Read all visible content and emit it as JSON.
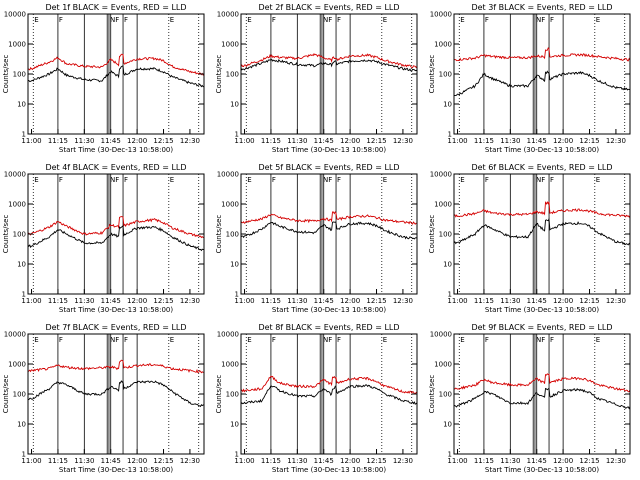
{
  "colors": {
    "events": "#000000",
    "lld": "#d40000",
    "axes": "#000000",
    "background": "#ffffff"
  },
  "chart_data": {
    "type": "line",
    "layout": "3x3 grid",
    "xlabel": "Start Time (30-Dec-13 10:58:00)",
    "ylabel": "Counts/sec",
    "ylog": true,
    "ylim": [
      1,
      10000
    ],
    "yticks": [
      "1",
      "10",
      "100",
      "1000",
      "10000"
    ],
    "xticks": [
      "11:00",
      "11:15",
      "11:30",
      "11:45",
      "12:00",
      "12:15",
      "12:30"
    ],
    "xlim": [
      "10:58",
      "12:38"
    ],
    "vertical_markers": {
      "solid": [
        "11:15",
        "11:30",
        "11:43",
        "11:44",
        "11:45",
        "11:52",
        "12:00"
      ],
      "dotted": [
        "11:01",
        "12:18",
        "12:35"
      ]
    },
    "marker_labels": [
      {
        "time": "11:01",
        "text": "E"
      },
      {
        "time": "11:15",
        "text": "F"
      },
      {
        "time": "11:44",
        "text": "NF"
      },
      {
        "time": "11:52",
        "text": "F"
      },
      {
        "time": "12:18",
        "text": "E"
      }
    ],
    "x": [
      "11:00",
      "11:10",
      "11:15",
      "11:20",
      "11:30",
      "11:40",
      "11:45",
      "11:50",
      "12:00",
      "12:10",
      "12:15",
      "12:20",
      "12:30",
      "12:37"
    ],
    "panels": [
      {
        "title": "Det 1f BLACK = Events, RED = LLD",
        "spike": 2.0,
        "series": [
          {
            "name": "Events",
            "values": [
              60,
              100,
              150,
              90,
              65,
              60,
              120,
              80,
              150,
              150,
              120,
              80,
              50,
              40
            ]
          },
          {
            "name": "LLD",
            "values": [
              150,
              250,
              350,
              220,
              180,
              170,
              300,
              200,
              320,
              330,
              280,
              180,
              120,
              100
            ]
          }
        ]
      },
      {
        "title": "Det 2f BLACK = Events, RED = LLD",
        "spike": 1.2,
        "series": [
          {
            "name": "Events",
            "values": [
              150,
              230,
              300,
              270,
              210,
              190,
              230,
              200,
              270,
              290,
              260,
              210,
              150,
              130
            ]
          },
          {
            "name": "LLD",
            "values": [
              190,
              300,
              400,
              360,
              330,
              450,
              350,
              280,
              400,
              420,
              360,
              280,
              200,
              170
            ]
          }
        ]
      },
      {
        "title": "Det 3f BLACK = Events, RED = LLD",
        "spike": 1.8,
        "series": [
          {
            "name": "Events",
            "values": [
              20,
              40,
              100,
              70,
              40,
              40,
              90,
              60,
              100,
              110,
              90,
              60,
              35,
              30
            ]
          },
          {
            "name": "LLD",
            "values": [
              300,
              340,
              420,
              380,
              350,
              350,
              400,
              370,
              420,
              440,
              420,
              380,
              330,
              300
            ]
          }
        ]
      },
      {
        "title": "Det 4f BLACK = Events, RED = LLD",
        "spike": 2.0,
        "series": [
          {
            "name": "Events",
            "values": [
              40,
              80,
              140,
              100,
              50,
              50,
              100,
              80,
              160,
              170,
              130,
              80,
              40,
              30
            ]
          },
          {
            "name": "LLD",
            "values": [
              100,
              170,
              260,
              180,
              100,
              110,
              200,
              170,
              260,
              300,
              240,
              160,
              100,
              80
            ]
          }
        ]
      },
      {
        "title": "Det 5f BLACK = Events, RED = LLD",
        "spike": 1.8,
        "series": [
          {
            "name": "Events",
            "values": [
              80,
              150,
              250,
              180,
              120,
              110,
              200,
              130,
              220,
              230,
              190,
              130,
              80,
              70
            ]
          },
          {
            "name": "LLD",
            "values": [
              250,
              320,
              450,
              350,
              280,
              270,
              330,
              280,
              380,
              400,
              350,
              290,
              250,
              230
            ]
          }
        ]
      },
      {
        "title": "Det 6f BLACK = Events, RED = LLD",
        "spike": 2.2,
        "series": [
          {
            "name": "Events",
            "values": [
              50,
              100,
              200,
              150,
              80,
              80,
              220,
              120,
              220,
              230,
              180,
              110,
              55,
              45
            ]
          },
          {
            "name": "LLD",
            "values": [
              400,
              480,
              600,
              500,
              450,
              450,
              550,
              480,
              600,
              650,
              580,
              480,
              420,
              400
            ]
          }
        ]
      },
      {
        "title": "Det 7f BLACK = Events, RED = LLD",
        "spike": 1.8,
        "series": [
          {
            "name": "Events",
            "values": [
              70,
              150,
              250,
              200,
              100,
              100,
              180,
              130,
              250,
              260,
              200,
              120,
              50,
              40
            ]
          },
          {
            "name": "LLD",
            "values": [
              600,
              700,
              900,
              780,
              700,
              750,
              800,
              700,
              900,
              950,
              850,
              700,
              600,
              550
            ]
          }
        ]
      },
      {
        "title": "Det 8f BLACK = Events, RED = LLD",
        "spike": 1.7,
        "series": [
          {
            "name": "Events",
            "values": [
              50,
              60,
              200,
              130,
              85,
              85,
              150,
              90,
              180,
              190,
              150,
              100,
              60,
              50
            ]
          },
          {
            "name": "LLD",
            "values": [
              130,
              150,
              400,
              230,
              180,
              180,
              300,
              200,
              320,
              330,
              260,
              180,
              120,
              110
            ]
          }
        ]
      },
      {
        "title": "Det 9f BLACK = Events, RED = LLD",
        "spike": 2.0,
        "series": [
          {
            "name": "Events",
            "values": [
              40,
              70,
              120,
              100,
              50,
              50,
              110,
              70,
              130,
              140,
              110,
              70,
              45,
              35
            ]
          },
          {
            "name": "LLD",
            "values": [
              150,
              200,
              300,
              240,
              200,
              200,
              320,
              220,
              320,
              340,
              280,
              200,
              150,
              130
            ]
          }
        ]
      }
    ]
  }
}
